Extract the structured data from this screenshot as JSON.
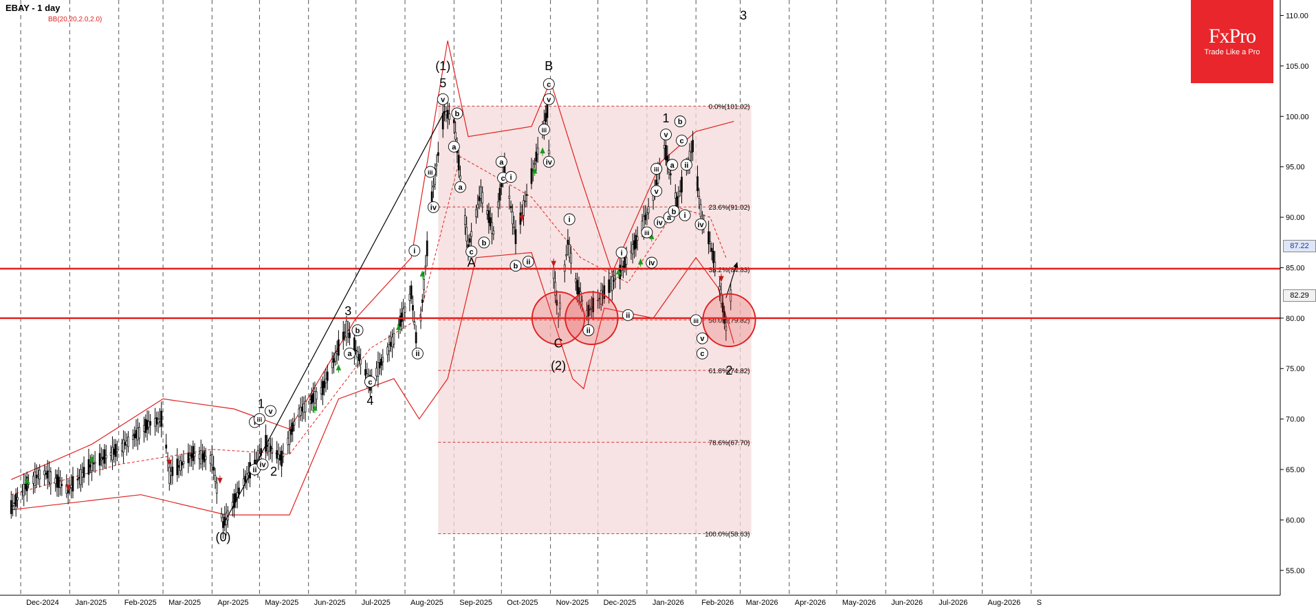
{
  "header": {
    "symbol_timeframe": "EBAY - 1 day",
    "indicator": "BB(20,20,2.0,2.0)"
  },
  "logo": {
    "brand": "FxPro",
    "tagline": "Trade Like a Pro"
  },
  "price_tags": [
    {
      "label": "87.22",
      "value": 87.22,
      "bg": "#dfe6f5",
      "color": "#1a3aa0"
    },
    {
      "label": "82.29",
      "value": 82.29,
      "bg": "#f2f2f2",
      "color": "#000000"
    }
  ],
  "colors": {
    "bollinger": "#e0201e",
    "support": "#e0201e",
    "fib_zone": "#f4d9d9",
    "candle": "#000000",
    "up_arrow": "#1a9a1a",
    "down_arrow": "#c01818"
  },
  "chart_data": {
    "type": "candlestick",
    "title": "EBAY - 1 day",
    "xlabel": "",
    "ylabel": "",
    "ylim": [
      52.5,
      111.5
    ],
    "grid": {
      "vertical": "dashed",
      "horizontal": false
    },
    "x_ticks": [
      "Dec-2024",
      "Jan-2025",
      "Feb-2025",
      "Mar-2025",
      "Apr-2025",
      "May-2025",
      "Jun-2025",
      "Jul-2025",
      "Aug-2025",
      "Sep-2025",
      "Oct-2025",
      "Nov-2025",
      "Dec-2025",
      "Jan-2026",
      "Feb-2026",
      "Mar-2026",
      "Apr-2026",
      "May-2026",
      "Jun-2026",
      "Jul-2026",
      "Aug-2026",
      "S"
    ],
    "y_ticks": [
      "55.00",
      "60.00",
      "65.00",
      "70.00",
      "75.00",
      "80.00",
      "85.00",
      "90.00",
      "95.00",
      "100.00",
      "105.00",
      "110.00"
    ],
    "price_path": [
      [
        "2024-11-25",
        61.2
      ],
      [
        "2024-12-05",
        63.5
      ],
      [
        "2024-12-15",
        64.8
      ],
      [
        "2024-12-31",
        63.0
      ],
      [
        "2025-01-15",
        65.5
      ],
      [
        "2025-02-01",
        67.0
      ],
      [
        "2025-02-20",
        69.5
      ],
      [
        "2025-03-01",
        70.0
      ],
      [
        "2025-03-05",
        64.5
      ],
      [
        "2025-03-20",
        66.5
      ],
      [
        "2025-04-01",
        66.0
      ],
      [
        "2025-04-08",
        59.5
      ],
      [
        "2025-04-20",
        63.5
      ],
      [
        "2025-05-05",
        67.5
      ],
      [
        "2025-05-15",
        66.0
      ],
      [
        "2025-05-25",
        70.5
      ],
      [
        "2025-06-10",
        73.0
      ],
      [
        "2025-06-25",
        79.0
      ],
      [
        "2025-07-10",
        73.5
      ],
      [
        "2025-07-25",
        78.0
      ],
      [
        "2025-08-05",
        82.5
      ],
      [
        "2025-08-09",
        76.5
      ],
      [
        "2025-08-18",
        92.0
      ],
      [
        "2025-08-26",
        100.5
      ],
      [
        "2025-09-01",
        99.5
      ],
      [
        "2025-09-10",
        87.0
      ],
      [
        "2025-09-18",
        92.5
      ],
      [
        "2025-09-26",
        88.5
      ],
      [
        "2025-10-03",
        95.0
      ],
      [
        "2025-10-10",
        88.0
      ],
      [
        "2025-10-20",
        94.0
      ],
      [
        "2025-10-30",
        100.5
      ],
      [
        "2025-11-03",
        84.5
      ],
      [
        "2025-11-06",
        80.0
      ],
      [
        "2025-11-12",
        87.5
      ],
      [
        "2025-11-18",
        83.0
      ],
      [
        "2025-11-24",
        80.5
      ],
      [
        "2025-12-05",
        82.5
      ],
      [
        "2025-12-15",
        84.5
      ],
      [
        "2025-12-25",
        87.5
      ],
      [
        "2026-01-05",
        92.0
      ],
      [
        "2026-01-12",
        97.0
      ],
      [
        "2026-01-20",
        91.5
      ],
      [
        "2026-01-30",
        97.0
      ],
      [
        "2026-02-05",
        89.5
      ],
      [
        "2026-02-10",
        87.5
      ],
      [
        "2026-02-16",
        83.0
      ],
      [
        "2026-02-20",
        79.0
      ],
      [
        "2026-02-23",
        82.3
      ]
    ],
    "bollinger_bands": {
      "upper": [
        [
          "2024-11-25",
          64.0
        ],
        [
          "2025-01-15",
          67.5
        ],
        [
          "2025-03-01",
          72.0
        ],
        [
          "2025-04-15",
          71.0
        ],
        [
          "2025-05-20",
          69.0
        ],
        [
          "2025-07-01",
          80.0
        ],
        [
          "2025-08-05",
          86.0
        ],
        [
          "2025-08-28",
          107.5
        ],
        [
          "2025-09-10",
          98.0
        ],
        [
          "2025-10-20",
          99.0
        ],
        [
          "2025-11-01",
          103.5
        ],
        [
          "2025-11-20",
          94.0
        ],
        [
          "2025-12-10",
          84.5
        ],
        [
          "2026-01-10",
          95.5
        ],
        [
          "2026-02-01",
          98.5
        ],
        [
          "2026-02-25",
          99.5
        ]
      ],
      "middle": [
        [
          "2024-11-25",
          62.5
        ],
        [
          "2025-02-01",
          65.5
        ],
        [
          "2025-04-01",
          67.0
        ],
        [
          "2025-05-20",
          66.5
        ],
        [
          "2025-07-10",
          77.0
        ],
        [
          "2025-08-10",
          80.0
        ],
        [
          "2025-09-05",
          96.0
        ],
        [
          "2025-10-20",
          92.0
        ],
        [
          "2025-11-20",
          86.0
        ],
        [
          "2025-12-20",
          83.5
        ],
        [
          "2026-01-20",
          91.0
        ],
        [
          "2026-02-10",
          90.0
        ],
        [
          "2026-02-20",
          86.0
        ]
      ],
      "lower": [
        [
          "2024-11-25",
          61.0
        ],
        [
          "2025-02-15",
          62.5
        ],
        [
          "2025-04-10",
          60.5
        ],
        [
          "2025-05-20",
          60.5
        ],
        [
          "2025-06-20",
          72.0
        ],
        [
          "2025-07-25",
          74.0
        ],
        [
          "2025-08-10",
          70.0
        ],
        [
          "2025-08-28",
          74.0
        ],
        [
          "2025-09-15",
          86.0
        ],
        [
          "2025-10-20",
          86.5
        ],
        [
          "2025-11-15",
          74.0
        ],
        [
          "2025-11-22",
          73.0
        ],
        [
          "2025-12-05",
          81.0
        ],
        [
          "2026-01-05",
          80.0
        ],
        [
          "2026-02-01",
          86.0
        ],
        [
          "2026-02-15",
          83.0
        ],
        [
          "2026-02-25",
          77.5
        ]
      ]
    },
    "fibonacci": {
      "start": "2025-08-22",
      "end": "2026-03-08",
      "price_high": 101.02,
      "price_low": 58.63,
      "levels": [
        {
          "label": "0.0%(101.02)",
          "value": 101.02
        },
        {
          "label": "23.6%(91.02)",
          "value": 91.02
        },
        {
          "label": "38.2%(84.83)",
          "value": 84.83
        },
        {
          "label": "50.0%(79.82)",
          "value": 79.82
        },
        {
          "label": "61.8%(74.82)",
          "value": 74.82
        },
        {
          "label": "78.6%(67.70)",
          "value": 67.7
        },
        {
          "label": "100.0%(58.63)",
          "value": 58.63
        }
      ]
    },
    "support_resistance": [
      84.9,
      80.0
    ],
    "circles": [
      {
        "date": "2025-11-06",
        "price": 80.0,
        "radius_price": 2.6
      },
      {
        "date": "2025-11-27",
        "price": 80.0,
        "radius_price": 2.6
      },
      {
        "date": "2026-02-22",
        "price": 79.8,
        "radius_price": 2.6
      }
    ],
    "trend_lines": [
      [
        [
          "2025-04-08",
          59.5
        ],
        [
          "2025-08-26",
          100.5
        ]
      ],
      [
        [
          "2026-02-20",
          82.0
        ],
        [
          "2026-02-27",
          85.5
        ]
      ]
    ],
    "wave_labels": [
      {
        "text": "(0)",
        "date": "2025-04-08",
        "price": 58.3,
        "circled": false,
        "size": 18
      },
      {
        "text": "1",
        "date": "2025-05-02",
        "price": 71.5,
        "circled": false,
        "size": 18
      },
      {
        "text": "2",
        "date": "2025-05-10",
        "price": 64.8,
        "circled": false,
        "size": 18
      },
      {
        "text": "3",
        "date": "2025-06-26",
        "price": 80.7,
        "circled": false,
        "size": 18
      },
      {
        "text": "4",
        "date": "2025-07-10",
        "price": 71.8,
        "circled": false,
        "size": 18
      },
      {
        "text": "5",
        "date": "2025-08-25",
        "price": 103.3,
        "circled": false,
        "size": 18
      },
      {
        "text": "(1)",
        "date": "2025-08-25",
        "price": 105.0,
        "circled": false,
        "size": 18
      },
      {
        "text": "A",
        "date": "2025-09-12",
        "price": 85.5,
        "circled": false,
        "size": 18
      },
      {
        "text": "B",
        "date": "2025-10-31",
        "price": 105.0,
        "circled": false,
        "size": 18
      },
      {
        "text": "C",
        "date": "2025-11-06",
        "price": 77.5,
        "circled": false,
        "size": 18
      },
      {
        "text": "(2)",
        "date": "2025-11-06",
        "price": 75.3,
        "circled": false,
        "size": 18
      },
      {
        "text": "1",
        "date": "2026-01-13",
        "price": 99.8,
        "circled": false,
        "size": 18
      },
      {
        "text": "2",
        "date": "2026-02-22",
        "price": 74.8,
        "circled": false,
        "size": 18
      },
      {
        "text": "3",
        "date": "2026-03-03",
        "price": 110.0,
        "circled": false,
        "size": 18
      },
      {
        "text": "i",
        "date": "2025-04-28",
        "price": 69.7,
        "circled": true,
        "size": 12
      },
      {
        "text": "ii",
        "date": "2025-04-28",
        "price": 65.0,
        "circled": true,
        "size": 12
      },
      {
        "text": "iii",
        "date": "2025-05-01",
        "price": 70.0,
        "circled": true,
        "size": 12
      },
      {
        "text": "iv",
        "date": "2025-05-03",
        "price": 65.5,
        "circled": true,
        "size": 12
      },
      {
        "text": "v",
        "date": "2025-05-08",
        "price": 70.8,
        "circled": true,
        "size": 12
      },
      {
        "text": "a",
        "date": "2025-06-27",
        "price": 76.5,
        "circled": true,
        "size": 12
      },
      {
        "text": "b",
        "date": "2025-07-02",
        "price": 78.8,
        "circled": true,
        "size": 12
      },
      {
        "text": "c",
        "date": "2025-07-10",
        "price": 73.7,
        "circled": true,
        "size": 12
      },
      {
        "text": "i",
        "date": "2025-08-07",
        "price": 86.7,
        "circled": true,
        "size": 12
      },
      {
        "text": "ii",
        "date": "2025-08-09",
        "price": 76.5,
        "circled": true,
        "size": 12
      },
      {
        "text": "iii",
        "date": "2025-08-17",
        "price": 94.5,
        "circled": true,
        "size": 12
      },
      {
        "text": "iv",
        "date": "2025-08-19",
        "price": 91.0,
        "circled": true,
        "size": 12
      },
      {
        "text": "v",
        "date": "2025-08-25",
        "price": 101.7,
        "circled": true,
        "size": 12
      },
      {
        "text": "a",
        "date": "2025-09-01",
        "price": 97.0,
        "circled": true,
        "size": 12
      },
      {
        "text": "b",
        "date": "2025-09-03",
        "price": 100.3,
        "circled": true,
        "size": 12
      },
      {
        "text": "a",
        "date": "2025-09-05",
        "price": 93.0,
        "circled": true,
        "size": 12
      },
      {
        "text": "b",
        "date": "2025-09-20",
        "price": 87.5,
        "circled": true,
        "size": 12
      },
      {
        "text": "c",
        "date": "2025-09-12",
        "price": 86.6,
        "circled": true,
        "size": 12
      },
      {
        "text": "a",
        "date": "2025-10-01",
        "price": 95.5,
        "circled": true,
        "size": 12
      },
      {
        "text": "b",
        "date": "2025-10-10",
        "price": 85.2,
        "circled": true,
        "size": 12
      },
      {
        "text": "c",
        "date": "2025-10-02",
        "price": 93.9,
        "circled": true,
        "size": 12
      },
      {
        "text": "i",
        "date": "2025-10-07",
        "price": 94.0,
        "circled": true,
        "size": 12
      },
      {
        "text": "ii",
        "date": "2025-10-18",
        "price": 85.6,
        "circled": true,
        "size": 12
      },
      {
        "text": "iii",
        "date": "2025-10-28",
        "price": 98.7,
        "circled": true,
        "size": 12
      },
      {
        "text": "iv",
        "date": "2025-10-31",
        "price": 95.5,
        "circled": true,
        "size": 12
      },
      {
        "text": "v",
        "date": "2025-10-31",
        "price": 101.7,
        "circled": true,
        "size": 12
      },
      {
        "text": "c",
        "date": "2025-10-31",
        "price": 103.2,
        "circled": true,
        "size": 12
      },
      {
        "text": "i",
        "date": "2025-11-13",
        "price": 89.8,
        "circled": true,
        "size": 12
      },
      {
        "text": "ii",
        "date": "2025-11-25",
        "price": 78.8,
        "circled": true,
        "size": 12
      },
      {
        "text": "i",
        "date": "2025-12-16",
        "price": 86.5,
        "circled": true,
        "size": 12
      },
      {
        "text": "ii",
        "date": "2025-12-20",
        "price": 80.3,
        "circled": true,
        "size": 12
      },
      {
        "text": "iii",
        "date": "2026-01-01",
        "price": 88.5,
        "circled": true,
        "size": 12
      },
      {
        "text": "iv",
        "date": "2026-01-04",
        "price": 85.5,
        "circled": true,
        "size": 12
      },
      {
        "text": "iii",
        "date": "2026-01-07",
        "price": 94.8,
        "circled": true,
        "size": 12
      },
      {
        "text": "iv",
        "date": "2026-01-09",
        "price": 89.5,
        "circled": true,
        "size": 12
      },
      {
        "text": "v",
        "date": "2026-01-07",
        "price": 92.6,
        "circled": true,
        "size": 12
      },
      {
        "text": "v",
        "date": "2026-01-13",
        "price": 98.2,
        "circled": true,
        "size": 12
      },
      {
        "text": "a",
        "date": "2026-01-17",
        "price": 95.2,
        "circled": true,
        "size": 12
      },
      {
        "text": "b",
        "date": "2026-01-22",
        "price": 99.5,
        "circled": true,
        "size": 12
      },
      {
        "text": "c",
        "date": "2026-01-23",
        "price": 97.6,
        "circled": true,
        "size": 12
      },
      {
        "text": "a",
        "date": "2026-01-15",
        "price": 90.0,
        "circled": true,
        "size": 12
      },
      {
        "text": "b",
        "date": "2026-01-18",
        "price": 90.6,
        "circled": true,
        "size": 12
      },
      {
        "text": "ii",
        "date": "2026-01-26",
        "price": 95.2,
        "circled": true,
        "size": 12
      },
      {
        "text": "i",
        "date": "2026-01-25",
        "price": 90.2,
        "circled": true,
        "size": 12
      },
      {
        "text": "iv",
        "date": "2026-02-04",
        "price": 89.3,
        "circled": true,
        "size": 12
      },
      {
        "text": "iii",
        "date": "2026-02-01",
        "price": 79.8,
        "circled": true,
        "size": 12
      },
      {
        "text": "v",
        "date": "2026-02-05",
        "price": 78.0,
        "circled": true,
        "size": 12
      },
      {
        "text": "c",
        "date": "2026-02-05",
        "price": 76.5,
        "circled": true,
        "size": 12
      }
    ],
    "signal_arrows": [
      {
        "date": "2024-12-05",
        "dir": "up",
        "price": 63.8
      },
      {
        "date": "2025-01-15",
        "dir": "up",
        "price": 66.0
      },
      {
        "date": "2024-12-31",
        "dir": "down",
        "price": 63.3
      },
      {
        "date": "2025-03-05",
        "dir": "down",
        "price": 65.8
      },
      {
        "date": "2025-04-06",
        "dir": "down",
        "price": 64.0
      },
      {
        "date": "2025-06-05",
        "dir": "up",
        "price": 71.0
      },
      {
        "date": "2025-06-20",
        "dir": "up",
        "price": 75.0
      },
      {
        "date": "2025-07-28",
        "dir": "up",
        "price": 79.0
      },
      {
        "date": "2025-08-12",
        "dir": "up",
        "price": 84.3
      },
      {
        "date": "2025-10-14",
        "dir": "down",
        "price": 90.0
      },
      {
        "date": "2025-10-22",
        "dir": "up",
        "price": 94.5
      },
      {
        "date": "2025-10-27",
        "dir": "up",
        "price": 96.5
      },
      {
        "date": "2025-11-03",
        "dir": "down",
        "price": 85.5
      },
      {
        "date": "2025-12-14",
        "dir": "up",
        "price": 84.5
      },
      {
        "date": "2025-12-28",
        "dir": "up",
        "price": 85.5
      },
      {
        "date": "2026-01-04",
        "dir": "up",
        "price": 88.0
      },
      {
        "date": "2026-01-26",
        "dir": "down",
        "price": 90.0
      },
      {
        "date": "2026-02-17",
        "dir": "down",
        "price": 84.0
      }
    ]
  }
}
